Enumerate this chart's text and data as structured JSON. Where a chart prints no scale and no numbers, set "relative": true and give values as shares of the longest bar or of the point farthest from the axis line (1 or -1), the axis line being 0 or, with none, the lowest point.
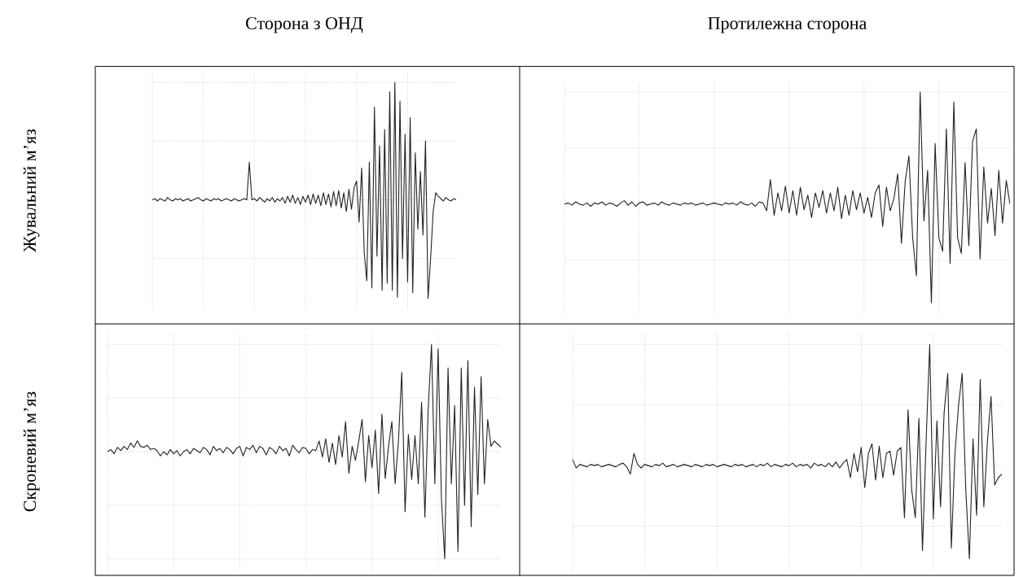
{
  "chart_data": [
    {
      "type": "line",
      "title": "Сторона з ОНД",
      "ylabel": "Жувальний м’яз",
      "relative": true,
      "grid": true,
      "tick_labels": false,
      "categories": [
        null,
        null,
        null,
        null,
        null,
        null,
        null,
        null,
        null,
        null,
        null,
        null,
        null,
        null,
        null,
        null,
        null,
        null,
        null,
        null,
        null,
        null,
        null,
        null,
        null,
        null,
        null,
        null,
        null,
        null,
        null,
        null,
        null,
        null,
        null,
        null,
        null,
        null,
        null,
        null,
        null,
        null,
        null,
        null,
        null,
        null,
        null,
        null,
        null,
        null,
        null,
        null,
        null,
        null,
        null,
        null,
        null,
        null,
        null,
        null,
        null,
        null,
        null,
        null,
        null,
        null,
        null,
        null,
        null,
        null,
        null,
        null,
        null,
        null,
        null,
        null,
        null,
        null,
        null,
        null,
        null,
        null,
        null,
        null,
        null,
        null,
        null,
        null,
        null,
        null,
        null,
        null,
        null,
        null,
        null,
        null,
        null,
        null,
        null,
        null,
        null,
        null,
        null,
        null,
        null,
        null,
        null,
        null,
        null,
        null,
        null,
        null,
        null,
        null,
        null,
        null,
        null,
        null,
        null,
        null
      ],
      "series": [
        {
          "color": "#222222",
          "values": [
            0,
            0.01,
            -0.01,
            0.01,
            0,
            -0.01,
            0.02,
            0,
            -0.01,
            0.01,
            0,
            0.01,
            -0.01,
            0,
            0.01,
            -0.01,
            0,
            0.01,
            0.02,
            0,
            -0.01,
            0.01,
            0,
            -0.01,
            0.01,
            0,
            0.01,
            -0.01,
            0,
            0.01,
            0,
            -0.01,
            0.01,
            0,
            -0.01,
            0,
            0.01,
            0,
            0.32,
            0,
            0.01,
            -0.01,
            0.02,
            0,
            -0.02,
            0.01,
            -0.01,
            0.02,
            -0.02,
            0.01,
            -0.01,
            0.02,
            -0.03,
            0.03,
            -0.02,
            0.04,
            -0.03,
            0.02,
            -0.04,
            0.03,
            -0.02,
            0.04,
            -0.04,
            0.05,
            -0.03,
            0.04,
            -0.05,
            0.06,
            -0.04,
            0.05,
            -0.06,
            0.07,
            -0.05,
            0.08,
            -0.07,
            0.06,
            -0.1,
            0.09,
            -0.08,
            0.1,
            0.16,
            -0.19,
            0.27,
            -0.45,
            -0.69,
            0.32,
            -0.75,
            0.79,
            -0.48,
            0.46,
            -0.77,
            0.6,
            -0.71,
            0.92,
            -0.77,
            1,
            -0.83,
            0.84,
            -0.5,
            0.56,
            -0.7,
            0.7,
            -0.79,
            0.4,
            -0.25,
            0.24,
            -0.3,
            0.5,
            -0.84,
            -0.5,
            -0.1,
            0.06,
            0.03,
            0.01,
            -0.01,
            0.02,
            0,
            -0.01,
            0.01,
            0
          ]
        }
      ]
    },
    {
      "type": "line",
      "title": "Протилежна сторона",
      "relative": true,
      "grid": true,
      "tick_labels": false,
      "categories": [
        null,
        null,
        null,
        null,
        null,
        null,
        null,
        null,
        null,
        null,
        null,
        null,
        null,
        null,
        null,
        null,
        null,
        null,
        null,
        null,
        null,
        null,
        null,
        null,
        null,
        null,
        null,
        null,
        null,
        null,
        null,
        null,
        null,
        null,
        null,
        null,
        null,
        null,
        null,
        null,
        null,
        null,
        null,
        null,
        null,
        null,
        null,
        null,
        null,
        null,
        null,
        null,
        null,
        null,
        null,
        null,
        null,
        null,
        null,
        null,
        null,
        null,
        null,
        null,
        null,
        null,
        null,
        null,
        null,
        null,
        null,
        null,
        null,
        null,
        null,
        null,
        null,
        null,
        null,
        null,
        null,
        null,
        null,
        null,
        null,
        null,
        null,
        null,
        null,
        null,
        null,
        null,
        null,
        null,
        null,
        null,
        null,
        null,
        null,
        null,
        null,
        null,
        null,
        null,
        null,
        null,
        null,
        null,
        null,
        null,
        null,
        null,
        null,
        null,
        null,
        null,
        null,
        null,
        null,
        null
      ],
      "series": [
        {
          "color": "#222222",
          "values": [
            0,
            0.01,
            -0.01,
            0.02,
            0,
            -0.01,
            0.01,
            -0.02,
            0.01,
            0,
            0.02,
            -0.01,
            0.01,
            0,
            -0.02,
            0.01,
            0.03,
            -0.01,
            0.02,
            -0.02,
            0.01,
            0.02,
            -0.01,
            0,
            0.01,
            -0.01,
            0.02,
            0,
            -0.01,
            0.01,
            0,
            -0.01,
            0.01,
            0,
            0.01,
            -0.01,
            0,
            0.01,
            -0.01,
            0,
            0.01,
            0,
            -0.01,
            0.01,
            0,
            0.01,
            -0.01,
            0.02,
            0,
            -0.01,
            0.01,
            -0.02,
            0.02,
            0.01,
            -0.06,
            0.22,
            -0.1,
            0.1,
            -0.06,
            0.16,
            -0.08,
            0.12,
            -0.1,
            0.15,
            -0.05,
            0.08,
            -0.12,
            0.1,
            -0.03,
            0.12,
            -0.08,
            0.1,
            -0.06,
            0.15,
            -0.13,
            0.08,
            -0.1,
            0.12,
            -0.05,
            0.1,
            -0.08,
            0.06,
            -0.12,
            0.1,
            0.17,
            -0.2,
            0.15,
            -0.06,
            0.05,
            0.27,
            -0.35,
            0.2,
            0.43,
            -0.3,
            -0.64,
            1,
            -0.15,
            0.3,
            -0.88,
            0.54,
            -0.3,
            -0.42,
            0.67,
            -0.53,
            0.91,
            -0.3,
            -0.44,
            0.37,
            -0.37,
            0.56,
            0.67,
            -0.49,
            0.33,
            -0.17,
            0.14,
            -0.28,
            0.3,
            -0.17,
            0.21,
            0
          ]
        }
      ]
    },
    {
      "type": "line",
      "ylabel": "Скроневий м’яз",
      "relative": true,
      "grid": true,
      "tick_labels": false,
      "categories": [
        null,
        null,
        null,
        null,
        null,
        null,
        null,
        null,
        null,
        null,
        null,
        null,
        null,
        null,
        null,
        null,
        null,
        null,
        null,
        null,
        null,
        null,
        null,
        null,
        null,
        null,
        null,
        null,
        null,
        null,
        null,
        null,
        null,
        null,
        null,
        null,
        null,
        null,
        null,
        null,
        null,
        null,
        null,
        null,
        null,
        null,
        null,
        null,
        null,
        null,
        null,
        null,
        null,
        null,
        null,
        null,
        null,
        null,
        null,
        null,
        null,
        null,
        null,
        null,
        null,
        null,
        null,
        null,
        null,
        null,
        null,
        null,
        null,
        null,
        null,
        null,
        null,
        null,
        null,
        null,
        null,
        null,
        null,
        null,
        null,
        null,
        null,
        null,
        null,
        null,
        null,
        null,
        null,
        null,
        null,
        null,
        null,
        null,
        null,
        null,
        null,
        null,
        null,
        null,
        null,
        null,
        null,
        null,
        null,
        null,
        null,
        null,
        null,
        null,
        null,
        null,
        null,
        null,
        null,
        null
      ],
      "series": [
        {
          "color": "#222222",
          "values": [
            0,
            0.02,
            -0.02,
            0.04,
            0.01,
            0.05,
            0.02,
            0.08,
            0.04,
            0.1,
            0.05,
            0.04,
            0.06,
            0.02,
            0.03,
            0.01,
            -0.04,
            0,
            -0.03,
            0.02,
            -0.02,
            0.01,
            -0.04,
            0,
            0.02,
            -0.02,
            0.03,
            0.01,
            -0.01,
            0.04,
            0.02,
            -0.03,
            0.05,
            0.01,
            0.03,
            -0.01,
            0.04,
            0.02,
            -0.02,
            0.03,
            0.05,
            -0.04,
            0.04,
            0.02,
            0.06,
            -0.01,
            0.05,
            0.03,
            -0.03,
            0.04,
            0.02,
            -0.02,
            0.05,
            0.01,
            0.03,
            -0.04,
            0.06,
            0.02,
            -0.01,
            0.04,
            0.03,
            -0.02,
            0.02,
            0.01,
            0.1,
            -0.05,
            0.12,
            -0.1,
            0.08,
            -0.12,
            0.15,
            -0.05,
            0.28,
            -0.2,
            0.05,
            -0.08,
            0.1,
            0.3,
            -0.28,
            0.15,
            -0.15,
            0.2,
            -0.39,
            0.35,
            -0.25,
            0.05,
            0.28,
            -0.3,
            0.1,
            0.74,
            -0.56,
            0.16,
            -0.26,
            0.15,
            -0.3,
            0.46,
            -0.61,
            0.4,
            1,
            -0.3,
            0.96,
            -0.44,
            -1,
            0.78,
            -0.3,
            0.43,
            -0.93,
            0.78,
            -0.5,
            0.85,
            -0.7,
            0.6,
            -0.4,
            0.7,
            -0.3,
            0.3,
            0.05,
            0.1,
            0.07,
            0.04
          ]
        }
      ]
    },
    {
      "type": "line",
      "relative": true,
      "grid": true,
      "tick_labels": false,
      "categories": [
        null,
        null,
        null,
        null,
        null,
        null,
        null,
        null,
        null,
        null,
        null,
        null,
        null,
        null,
        null,
        null,
        null,
        null,
        null,
        null,
        null,
        null,
        null,
        null,
        null,
        null,
        null,
        null,
        null,
        null,
        null,
        null,
        null,
        null,
        null,
        null,
        null,
        null,
        null,
        null,
        null,
        null,
        null,
        null,
        null,
        null,
        null,
        null,
        null,
        null,
        null,
        null,
        null,
        null,
        null,
        null,
        null,
        null,
        null,
        null,
        null,
        null,
        null,
        null,
        null,
        null,
        null,
        null,
        null,
        null,
        null,
        null,
        null,
        null,
        null,
        null,
        null,
        null,
        null,
        null,
        null,
        null,
        null,
        null,
        null,
        null,
        null,
        null,
        null,
        null,
        null,
        null,
        null,
        null,
        null,
        null,
        null,
        null,
        null,
        null,
        null,
        null,
        null,
        null,
        null,
        null,
        null,
        null,
        null,
        null,
        null,
        null,
        null,
        null,
        null,
        null,
        null,
        null,
        null,
        null
      ],
      "series": [
        {
          "color": "#222222",
          "values": [
            0.05,
            -0.02,
            0.01,
            0,
            -0.01,
            0.01,
            0,
            0.01,
            -0.01,
            0,
            0.01,
            0,
            -0.01,
            0.01,
            0.02,
            -0.01,
            -0.07,
            0.1,
            0.01,
            -0.02,
            0.01,
            0,
            -0.01,
            0.01,
            0,
            0.02,
            -0.01,
            0,
            0.01,
            -0.01,
            0,
            0.01,
            0,
            -0.01,
            0.01,
            0,
            -0.01,
            0.01,
            0,
            0.01,
            -0.01,
            0,
            0.01,
            0,
            -0.01,
            0.01,
            0,
            0.01,
            -0.01,
            0,
            0.01,
            -0.01,
            0.01,
            0,
            0.02,
            -0.01,
            0.01,
            0,
            -0.01,
            0.01,
            0,
            0.02,
            -0.01,
            0.01,
            0,
            0.01,
            -0.02,
            0.02,
            0,
            0.01,
            -0.01,
            0.02,
            -0.01,
            0.03,
            -0.02,
            0.02,
            0.05,
            -0.1,
            0.1,
            -0.05,
            0.15,
            -0.18,
            0.1,
            0.18,
            -0.12,
            0.16,
            -0.1,
            0.1,
            0.12,
            -0.08,
            0.12,
            0.15,
            -0.43,
            0.46,
            -0.2,
            -0.43,
            0.39,
            -0.7,
            0.2,
            1,
            -0.44,
            0.37,
            -0.34,
            0.44,
            0.76,
            -0.68,
            0.1,
            0.5,
            0.76,
            -0.2,
            -0.77,
            0.22,
            -0.41,
            0.71,
            -0.34,
            0.2,
            0.57,
            -0.16,
            -0.1,
            -0.07
          ]
        }
      ]
    }
  ]
}
